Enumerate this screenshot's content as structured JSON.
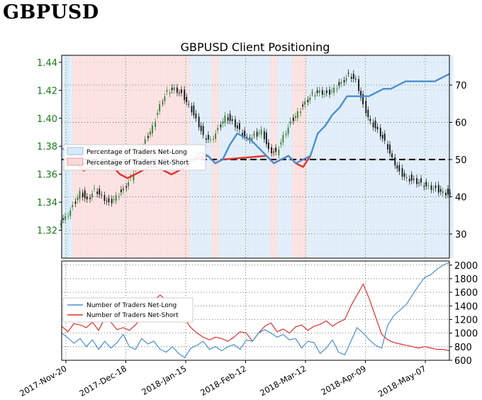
{
  "header": {
    "title": "GBPUSD"
  },
  "colors": {
    "price_axis": "#1a7a1a",
    "long_line": "#4a8fd0",
    "short_line": "#e03030",
    "long_fill": "#d8eaf8",
    "short_fill": "#fbd9d9",
    "candle_up": "#2e7d2e",
    "candle_down": "#111111",
    "grid": "#555555"
  },
  "chart_data": [
    {
      "type": "line",
      "title": "GBPUSD Client Positioning",
      "x_tick_labels": [
        "2017-Nov-20",
        "2017-Dec-18",
        "2018-Jan-15",
        "2018-Feb-12",
        "2018-Mar-12",
        "2018-Apr-09",
        "2018-May-07"
      ],
      "y_left_ticks": [
        "1.32",
        "1.34",
        "1.36",
        "1.38",
        "1.40",
        "1.42",
        "1.44"
      ],
      "y_left_range": [
        1.3,
        1.445
      ],
      "y_right_ticks": [
        "30",
        "40",
        "50",
        "60",
        "70"
      ],
      "y_right_range": [
        23.5,
        78
      ],
      "reference_line": 50,
      "legend_position": "upper-left",
      "grid": true,
      "series": [
        {
          "name": "Percentage of Traders Net-Long",
          "kind": "sentiment",
          "values": [
            53,
            52,
            49,
            47,
            48,
            49,
            49,
            48,
            46,
            45,
            46,
            47,
            48,
            48,
            47,
            46,
            47,
            48,
            50,
            52,
            51,
            49,
            50,
            54,
            57,
            56,
            55,
            53,
            51,
            49,
            50,
            51,
            49,
            48,
            51,
            57,
            59,
            62,
            64,
            67,
            67,
            67,
            67,
            68,
            69,
            69,
            70,
            71,
            71,
            71,
            71,
            71,
            72,
            73
          ]
        },
        {
          "name": "Percentage of Traders Net-Short",
          "kind": "sentiment_complement",
          "values": [
            47,
            48,
            51,
            53,
            52,
            51,
            51,
            52,
            54,
            55,
            54,
            53,
            52,
            52,
            53,
            54,
            53,
            52,
            50,
            48,
            49,
            51,
            50,
            46,
            43,
            44,
            45,
            47,
            49,
            51,
            50,
            49,
            51,
            52,
            49,
            43,
            41,
            38,
            36,
            33,
            33,
            33,
            33,
            32,
            31,
            31,
            30,
            29,
            29,
            29,
            29,
            29,
            28,
            27
          ]
        },
        {
          "name": "GBPUSD price",
          "kind": "candles_close",
          "values": [
            1.33,
            1.338,
            1.348,
            1.342,
            1.35,
            1.345,
            1.34,
            1.345,
            1.35,
            1.358,
            1.372,
            1.385,
            1.395,
            1.41,
            1.42,
            1.422,
            1.418,
            1.41,
            1.4,
            1.388,
            1.385,
            1.393,
            1.402,
            1.398,
            1.392,
            1.386,
            1.388,
            1.392,
            1.378,
            1.376,
            1.388,
            1.398,
            1.405,
            1.412,
            1.418,
            1.42,
            1.418,
            1.422,
            1.426,
            1.432,
            1.428,
            1.41,
            1.398,
            1.392,
            1.384,
            1.372,
            1.362,
            1.358,
            1.356,
            1.354,
            1.352,
            1.35,
            1.348,
            1.346
          ]
        }
      ]
    },
    {
      "type": "line",
      "x_tick_labels": [
        "2017-Nov-20",
        "2017-Dec-18",
        "2018-Jan-15",
        "2018-Feb-12",
        "2018-Mar-12",
        "2018-Apr-09",
        "2018-May-07"
      ],
      "y_right_ticks": [
        "600",
        "800",
        "1000",
        "1200",
        "1400",
        "1600",
        "1800",
        "2000"
      ],
      "y_range": [
        600,
        2060
      ],
      "legend_position": "center-left",
      "grid": true,
      "series": [
        {
          "name": "Number of Traders Net-Long",
          "values": [
            1000,
            930,
            850,
            920,
            800,
            900,
            760,
            880,
            780,
            860,
            980,
            800,
            760,
            920,
            840,
            880,
            760,
            720,
            800,
            700,
            640,
            780,
            820,
            880,
            760,
            800,
            740,
            800,
            830,
            760,
            900,
            880,
            1000,
            1050,
            1000,
            940,
            980,
            900,
            920,
            780,
            880,
            860,
            700,
            780,
            900,
            720,
            680,
            880,
            1080,
            1000,
            900,
            820,
            780,
            1120,
            1260,
            1340,
            1420,
            1560,
            1700,
            1820,
            1860,
            1940,
            2000,
            2040
          ]
        },
        {
          "name": "Number of Traders Net-Short",
          "values": [
            1100,
            1020,
            1140,
            1120,
            1080,
            1160,
            1040,
            1220,
            1160,
            1050,
            1080,
            1040,
            1120,
            1240,
            1320,
            1480,
            1560,
            1480,
            1360,
            1260,
            1200,
            1080,
            1000,
            940,
            900,
            940,
            920,
            880,
            940,
            1020,
            1000,
            880,
            1000,
            1100,
            1150,
            1020,
            1060,
            1000,
            1090,
            1120,
            1040,
            1100,
            1130,
            1180,
            1100,
            1160,
            1200,
            1400,
            1560,
            1720,
            1500,
            1240,
            980,
            900,
            860,
            840,
            820,
            800,
            780,
            800,
            780,
            760,
            760,
            740
          ]
        }
      ]
    }
  ]
}
